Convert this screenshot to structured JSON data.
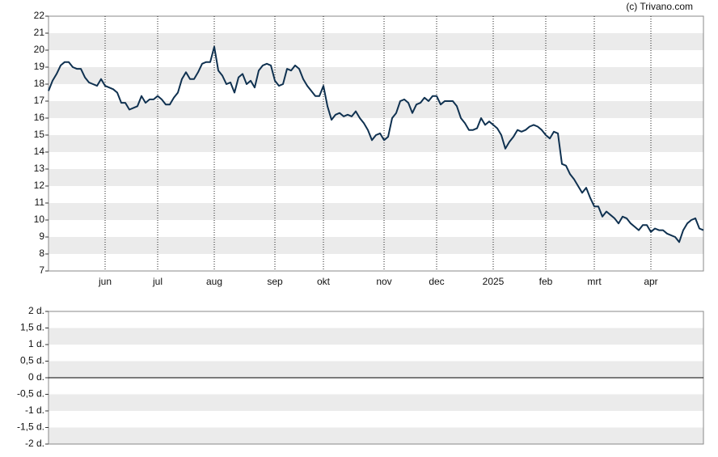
{
  "credit": "(c) Trivano.com",
  "chart_data": [
    {
      "type": "line",
      "categories": [
        null,
        null,
        null,
        null,
        null,
        null,
        null,
        null,
        null,
        null,
        null,
        null,
        null,
        null,
        "jun",
        null,
        null,
        null,
        null,
        null,
        null,
        null,
        null,
        null,
        null,
        null,
        null,
        "jul",
        null,
        null,
        null,
        null,
        null,
        null,
        null,
        null,
        null,
        null,
        null,
        null,
        null,
        "aug",
        null,
        null,
        null,
        null,
        null,
        null,
        null,
        null,
        null,
        null,
        null,
        null,
        null,
        null,
        "sep",
        null,
        null,
        null,
        null,
        null,
        null,
        null,
        null,
        null,
        null,
        null,
        "okt",
        null,
        null,
        null,
        null,
        null,
        null,
        null,
        null,
        null,
        null,
        null,
        null,
        null,
        null,
        "nov",
        null,
        null,
        null,
        null,
        null,
        null,
        null,
        null,
        null,
        null,
        null,
        null,
        "dec",
        null,
        null,
        null,
        null,
        null,
        null,
        null,
        null,
        null,
        null,
        null,
        null,
        null,
        "2025",
        null,
        null,
        null,
        null,
        null,
        null,
        null,
        null,
        null,
        null,
        null,
        null,
        "feb",
        null,
        null,
        null,
        null,
        null,
        null,
        null,
        null,
        null,
        null,
        null,
        "mrt",
        null,
        null,
        null,
        null,
        null,
        null,
        null,
        null,
        null,
        null,
        null,
        null,
        null,
        "apr",
        null,
        null,
        null,
        null,
        null,
        null,
        null,
        null,
        null,
        null,
        null,
        null,
        null
      ],
      "series": [
        {
          "color": "#0f3150",
          "values": [
            17.6,
            18.2,
            18.6,
            19.1,
            19.3,
            19.3,
            19.0,
            18.9,
            18.9,
            18.4,
            18.1,
            18.0,
            17.9,
            18.3,
            17.9,
            17.8,
            17.7,
            17.5,
            16.9,
            16.9,
            16.5,
            16.6,
            16.7,
            17.3,
            16.9,
            17.1,
            17.1,
            17.3,
            17.1,
            16.8,
            16.8,
            17.2,
            17.5,
            18.3,
            18.7,
            18.3,
            18.3,
            18.7,
            19.2,
            19.3,
            19.3,
            20.2,
            18.8,
            18.5,
            18.0,
            18.1,
            17.5,
            18.4,
            18.6,
            18.0,
            18.2,
            17.8,
            18.8,
            19.1,
            19.2,
            19.1,
            18.2,
            17.9,
            18.0,
            18.9,
            18.8,
            19.1,
            18.9,
            18.3,
            17.9,
            17.6,
            17.3,
            17.3,
            17.9,
            16.7,
            15.9,
            16.2,
            16.3,
            16.1,
            16.2,
            16.1,
            16.4,
            16.0,
            15.7,
            15.3,
            14.7,
            15.0,
            15.1,
            14.7,
            14.9,
            16.0,
            16.3,
            17.0,
            17.1,
            16.9,
            16.3,
            16.8,
            16.9,
            17.2,
            17.0,
            17.3,
            17.3,
            16.8,
            17.0,
            17.0,
            17.0,
            16.7,
            16.0,
            15.7,
            15.3,
            15.3,
            15.4,
            16.0,
            15.6,
            15.8,
            15.6,
            15.4,
            15.0,
            14.2,
            14.6,
            14.9,
            15.3,
            15.2,
            15.3,
            15.5,
            15.6,
            15.5,
            15.3,
            15.0,
            14.8,
            15.2,
            15.1,
            13.3,
            13.2,
            12.7,
            12.4,
            12.0,
            11.6,
            11.9,
            11.3,
            10.8,
            10.8,
            10.2,
            10.5,
            10.3,
            10.1,
            9.8,
            10.2,
            10.1,
            9.8,
            9.6,
            9.4,
            9.7,
            9.7,
            9.3,
            9.5,
            9.4,
            9.4,
            9.2,
            9.1,
            9.0,
            8.7,
            9.4,
            9.8,
            10.0,
            10.1,
            9.5,
            9.4
          ]
        }
      ],
      "ylim": [
        7,
        22
      ],
      "yticks": [
        7,
        8,
        9,
        10,
        11,
        12,
        13,
        14,
        15,
        16,
        17,
        18,
        19,
        20,
        21,
        22
      ]
    },
    {
      "type": "line",
      "ylim": [
        -2,
        2
      ],
      "yticks": [
        {
          "value": 2,
          "label": "2 d."
        },
        {
          "value": 1.5,
          "label": "1,5 d."
        },
        {
          "value": 1,
          "label": "1 d."
        },
        {
          "value": 0.5,
          "label": "0,5 d."
        },
        {
          "value": 0,
          "label": "0 d."
        },
        {
          "value": -0.5,
          "label": "-0,5 d."
        },
        {
          "value": -1,
          "label": "-1 d."
        },
        {
          "value": -1.5,
          "label": "-1,5 d."
        },
        {
          "value": -2,
          "label": "-2 d."
        }
      ]
    }
  ]
}
